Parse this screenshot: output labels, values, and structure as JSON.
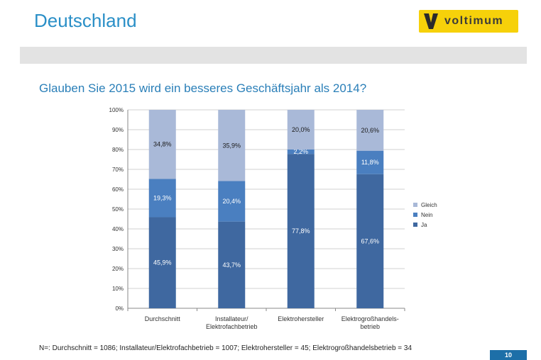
{
  "slide": {
    "title": "Deutschland",
    "logo_text": "voltimum",
    "question": "Glauben Sie 2015 wird ein besseres Geschäftsjahr als 2014?",
    "footnote": "N=: Durchschnitt = 1086; Installateur/Elektrofachbetrieb = 1007; Elektrohersteller = 45; Elektrogroßhandelsbetrieb = 34",
    "page_number": "10",
    "colors": {
      "title": "#2a8fc7",
      "logo_bg": "#f6d10a",
      "band": "#e3e3e3",
      "page_badge": "#1d6fa8"
    }
  },
  "chart_data": {
    "type": "bar",
    "stacked": true,
    "categories": [
      [
        "Durchschnitt"
      ],
      [
        "Installateur/",
        "Elektrofachbetrieb"
      ],
      [
        "Elektrohersteller"
      ],
      [
        "Elektrogroßhandels-",
        "betrieb"
      ]
    ],
    "series": [
      {
        "name": "Ja",
        "values": [
          45.9,
          43.7,
          77.8,
          67.6
        ],
        "labels": [
          "45,9%",
          "43,7%",
          "77,8%",
          "67,6%"
        ],
        "color": "#3f68a0",
        "label_color": "#ffffff"
      },
      {
        "name": "Nein",
        "values": [
          19.3,
          20.4,
          2.2,
          11.8
        ],
        "labels": [
          "19,3%",
          "20,4%",
          "2,2%",
          "11,8%"
        ],
        "color": "#4a7fc0",
        "label_color": "#ffffff"
      },
      {
        "name": "Gleich",
        "values": [
          34.8,
          35.9,
          20.0,
          20.6
        ],
        "labels": [
          "34,8%",
          "35,9%",
          "20,0%",
          "20,6%"
        ],
        "color": "#a9b9d8",
        "label_color": "#1a1a1a"
      }
    ],
    "y_ticks": [
      "0%",
      "10%",
      "20%",
      "30%",
      "40%",
      "50%",
      "60%",
      "70%",
      "80%",
      "90%",
      "100%"
    ],
    "ylim": [
      0,
      100
    ],
    "grid": true,
    "legend_position": "right",
    "legend_order": [
      "Gleich",
      "Nein",
      "Ja"
    ]
  }
}
